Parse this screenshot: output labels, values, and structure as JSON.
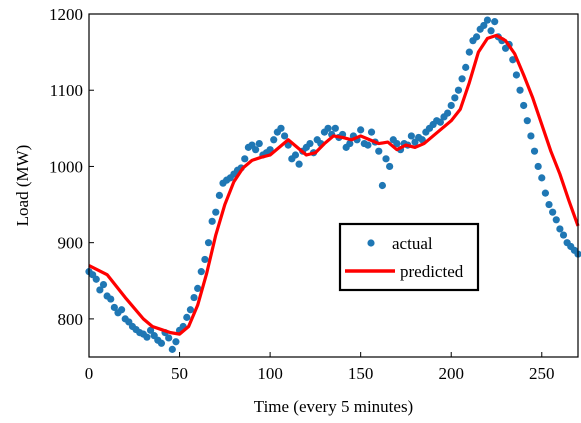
{
  "colors": {
    "actual": "#1f77b4",
    "predicted": "#ff0000",
    "axis": "#000000",
    "background": "#ffffff"
  },
  "chart_data": {
    "type": "scatter",
    "xlabel": "Time (every 5 minutes)",
    "ylabel": "Load (MW)",
    "xlim": [
      0,
      270
    ],
    "ylim": [
      750,
      1200
    ],
    "xticks": [
      0,
      50,
      100,
      150,
      200,
      250
    ],
    "yticks": [
      800,
      900,
      1000,
      1100,
      1200
    ],
    "grid": false,
    "legend": {
      "placement": "center-right",
      "entries": [
        "actual",
        "predicted"
      ]
    },
    "series": [
      {
        "name": "actual",
        "mark": "point",
        "points": [
          [
            0,
            862
          ],
          [
            2,
            858
          ],
          [
            4,
            852
          ],
          [
            6,
            838
          ],
          [
            8,
            845
          ],
          [
            10,
            830
          ],
          [
            12,
            826
          ],
          [
            14,
            815
          ],
          [
            16,
            808
          ],
          [
            18,
            812
          ],
          [
            20,
            800
          ],
          [
            22,
            796
          ],
          [
            24,
            790
          ],
          [
            26,
            786
          ],
          [
            28,
            782
          ],
          [
            30,
            780
          ],
          [
            32,
            776
          ],
          [
            34,
            785
          ],
          [
            36,
            778
          ],
          [
            38,
            772
          ],
          [
            40,
            768
          ],
          [
            42,
            782
          ],
          [
            44,
            775
          ],
          [
            46,
            760
          ],
          [
            48,
            770
          ],
          [
            50,
            785
          ],
          [
            52,
            790
          ],
          [
            54,
            802
          ],
          [
            56,
            812
          ],
          [
            58,
            828
          ],
          [
            60,
            840
          ],
          [
            62,
            862
          ],
          [
            64,
            878
          ],
          [
            66,
            900
          ],
          [
            68,
            928
          ],
          [
            70,
            940
          ],
          [
            72,
            962
          ],
          [
            74,
            978
          ],
          [
            76,
            982
          ],
          [
            78,
            985
          ],
          [
            80,
            990
          ],
          [
            82,
            995
          ],
          [
            84,
            998
          ],
          [
            86,
            1010
          ],
          [
            88,
            1025
          ],
          [
            90,
            1028
          ],
          [
            92,
            1022
          ],
          [
            94,
            1030
          ],
          [
            96,
            1015
          ],
          [
            98,
            1018
          ],
          [
            100,
            1022
          ],
          [
            102,
            1035
          ],
          [
            104,
            1045
          ],
          [
            106,
            1050
          ],
          [
            108,
            1040
          ],
          [
            110,
            1028
          ],
          [
            112,
            1010
          ],
          [
            114,
            1015
          ],
          [
            116,
            1003
          ],
          [
            118,
            1020
          ],
          [
            120,
            1025
          ],
          [
            122,
            1030
          ],
          [
            124,
            1018
          ],
          [
            126,
            1035
          ],
          [
            128,
            1030
          ],
          [
            130,
            1045
          ],
          [
            132,
            1050
          ],
          [
            134,
            1042
          ],
          [
            136,
            1050
          ],
          [
            138,
            1038
          ],
          [
            140,
            1042
          ],
          [
            142,
            1025
          ],
          [
            144,
            1030
          ],
          [
            146,
            1040
          ],
          [
            148,
            1035
          ],
          [
            150,
            1048
          ],
          [
            152,
            1030
          ],
          [
            154,
            1028
          ],
          [
            156,
            1045
          ],
          [
            158,
            1032
          ],
          [
            160,
            1020
          ],
          [
            162,
            975
          ],
          [
            164,
            1010
          ],
          [
            166,
            1000
          ],
          [
            168,
            1035
          ],
          [
            170,
            1030
          ],
          [
            172,
            1022
          ],
          [
            174,
            1030
          ],
          [
            176,
            1028
          ],
          [
            178,
            1040
          ],
          [
            180,
            1032
          ],
          [
            182,
            1038
          ],
          [
            184,
            1035
          ],
          [
            186,
            1045
          ],
          [
            188,
            1050
          ],
          [
            190,
            1055
          ],
          [
            192,
            1060
          ],
          [
            194,
            1058
          ],
          [
            196,
            1065
          ],
          [
            198,
            1070
          ],
          [
            200,
            1080
          ],
          [
            202,
            1090
          ],
          [
            204,
            1100
          ],
          [
            206,
            1115
          ],
          [
            208,
            1130
          ],
          [
            210,
            1150
          ],
          [
            212,
            1165
          ],
          [
            214,
            1170
          ],
          [
            216,
            1180
          ],
          [
            218,
            1185
          ],
          [
            220,
            1192
          ],
          [
            222,
            1178
          ],
          [
            224,
            1190
          ],
          [
            226,
            1170
          ],
          [
            228,
            1165
          ],
          [
            230,
            1155
          ],
          [
            232,
            1160
          ],
          [
            234,
            1140
          ],
          [
            236,
            1120
          ],
          [
            238,
            1100
          ],
          [
            240,
            1080
          ],
          [
            242,
            1060
          ],
          [
            244,
            1040
          ],
          [
            246,
            1020
          ],
          [
            248,
            1000
          ],
          [
            250,
            985
          ],
          [
            252,
            965
          ],
          [
            254,
            950
          ],
          [
            256,
            940
          ],
          [
            258,
            930
          ],
          [
            260,
            918
          ],
          [
            262,
            910
          ],
          [
            264,
            900
          ],
          [
            266,
            895
          ],
          [
            268,
            890
          ],
          [
            270,
            885
          ]
        ]
      },
      {
        "name": "predicted",
        "mark": "line",
        "points": [
          [
            0,
            870
          ],
          [
            10,
            858
          ],
          [
            20,
            828
          ],
          [
            30,
            800
          ],
          [
            35,
            790
          ],
          [
            40,
            786
          ],
          [
            45,
            782
          ],
          [
            50,
            780
          ],
          [
            55,
            790
          ],
          [
            60,
            818
          ],
          [
            65,
            860
          ],
          [
            70,
            910
          ],
          [
            75,
            950
          ],
          [
            80,
            980
          ],
          [
            85,
            998
          ],
          [
            90,
            1008
          ],
          [
            95,
            1012
          ],
          [
            100,
            1015
          ],
          [
            105,
            1025
          ],
          [
            110,
            1035
          ],
          [
            115,
            1025
          ],
          [
            120,
            1015
          ],
          [
            125,
            1018
          ],
          [
            130,
            1030
          ],
          [
            135,
            1040
          ],
          [
            140,
            1038
          ],
          [
            145,
            1035
          ],
          [
            150,
            1040
          ],
          [
            155,
            1035
          ],
          [
            160,
            1030
          ],
          [
            165,
            1032
          ],
          [
            170,
            1022
          ],
          [
            175,
            1028
          ],
          [
            180,
            1025
          ],
          [
            185,
            1030
          ],
          [
            190,
            1040
          ],
          [
            195,
            1050
          ],
          [
            200,
            1060
          ],
          [
            205,
            1075
          ],
          [
            210,
            1110
          ],
          [
            215,
            1150
          ],
          [
            220,
            1168
          ],
          [
            225,
            1172
          ],
          [
            230,
            1165
          ],
          [
            235,
            1148
          ],
          [
            240,
            1120
          ],
          [
            245,
            1090
          ],
          [
            250,
            1055
          ],
          [
            255,
            1020
          ],
          [
            260,
            990
          ],
          [
            265,
            955
          ],
          [
            270,
            922
          ]
        ]
      }
    ]
  }
}
